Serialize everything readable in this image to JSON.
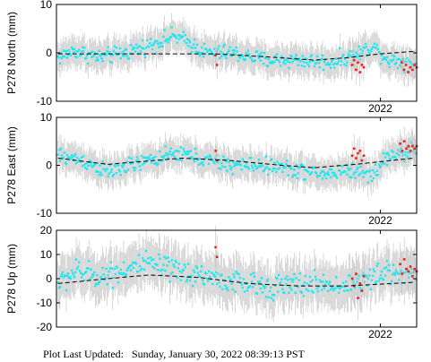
{
  "footer": {
    "label": "Plot Last Updated:",
    "timestamp": "Sunday, January 30, 2022 08:39:13 PST"
  },
  "colors": {
    "data_points": "#22e5ee",
    "recent_points": "#e8221c",
    "error_bars": "#c8c8c8",
    "trend_line": "#000000"
  },
  "chart_data": [
    {
      "type": "scatter",
      "ylabel": "P278 North (mm)",
      "ylim": [
        -10,
        10
      ],
      "yticks": [
        -10,
        0,
        10
      ],
      "xlim": [
        2020.04,
        2022.22
      ],
      "xticks": [
        2022
      ],
      "xtick_labels": [
        "2022"
      ],
      "error_bar_mm": 3,
      "trend": [
        {
          "t": 2020.05,
          "y": -0.2
        },
        {
          "t": 2020.6,
          "y": -0.2
        },
        {
          "t": 2021.0,
          "y": -0.2
        },
        {
          "t": 2021.3,
          "y": -0.8
        },
        {
          "t": 2021.6,
          "y": -1.5
        },
        {
          "t": 2021.8,
          "y": -1.0
        },
        {
          "t": 2022.0,
          "y": -0.2
        },
        {
          "t": 2022.2,
          "y": 0.3
        }
      ],
      "anchors": [
        {
          "t": 2020.05,
          "y": -1.0
        },
        {
          "t": 2020.15,
          "y": 0.5
        },
        {
          "t": 2020.3,
          "y": -1.0
        },
        {
          "t": 2020.45,
          "y": 0.0
        },
        {
          "t": 2020.55,
          "y": 1.0
        },
        {
          "t": 2020.68,
          "y": 2.5
        },
        {
          "t": 2020.75,
          "y": 3.5
        },
        {
          "t": 2020.85,
          "y": 2.0
        },
        {
          "t": 2020.95,
          "y": 0.0
        },
        {
          "t": 2021.1,
          "y": 0.0
        },
        {
          "t": 2021.3,
          "y": -1.5
        },
        {
          "t": 2021.5,
          "y": -1.5
        },
        {
          "t": 2021.7,
          "y": -2.0
        },
        {
          "t": 2021.85,
          "y": -0.5
        },
        {
          "t": 2021.95,
          "y": 1.5
        },
        {
          "t": 2022.05,
          "y": -1.5
        },
        {
          "t": 2022.2,
          "y": -2.0
        }
      ],
      "recent_ranges": [
        {
          "from": 2021.003,
          "to": 2021.012,
          "values": [
            -0.5,
            -2.5
          ]
        },
        {
          "from": 2021.83,
          "to": 2021.9,
          "values": [
            -2.5,
            -1.5,
            -3.5,
            -2.0,
            -4.0,
            -2.5,
            -3.0
          ]
        },
        {
          "from": 2022.13,
          "to": 2022.22,
          "values": [
            -2.0,
            -3.5,
            -2.5,
            -4.0,
            -3.0,
            -3.5,
            -2.5,
            -3.0
          ]
        }
      ]
    },
    {
      "type": "scatter",
      "ylabel": "P278 East (mm)",
      "ylim": [
        -10,
        10
      ],
      "yticks": [
        -10,
        0,
        10
      ],
      "xlim": [
        2020.04,
        2022.22
      ],
      "xticks": [
        2022
      ],
      "xtick_labels": [
        "2022"
      ],
      "error_bar_mm": 3,
      "trend": [
        {
          "t": 2020.05,
          "y": 1.5
        },
        {
          "t": 2020.35,
          "y": 0.2
        },
        {
          "t": 2020.8,
          "y": 1.5
        },
        {
          "t": 2021.1,
          "y": 1.0
        },
        {
          "t": 2021.4,
          "y": 0.0
        },
        {
          "t": 2021.6,
          "y": -0.5
        },
        {
          "t": 2021.85,
          "y": 0.2
        },
        {
          "t": 2022.2,
          "y": 1.5
        }
      ],
      "anchors": [
        {
          "t": 2020.05,
          "y": 2.0
        },
        {
          "t": 2020.2,
          "y": 1.0
        },
        {
          "t": 2020.35,
          "y": -1.5
        },
        {
          "t": 2020.5,
          "y": 0.0
        },
        {
          "t": 2020.65,
          "y": 1.5
        },
        {
          "t": 2020.8,
          "y": 2.5
        },
        {
          "t": 2020.95,
          "y": 1.0
        },
        {
          "t": 2021.1,
          "y": 0.0
        },
        {
          "t": 2021.3,
          "y": 0.0
        },
        {
          "t": 2021.5,
          "y": -1.0
        },
        {
          "t": 2021.65,
          "y": -2.0
        },
        {
          "t": 2021.8,
          "y": -1.0
        },
        {
          "t": 2021.95,
          "y": -2.0
        },
        {
          "t": 2022.05,
          "y": 2.0
        },
        {
          "t": 2022.2,
          "y": 3.0
        }
      ],
      "recent_ranges": [
        {
          "from": 2021.005,
          "to": 2021.012,
          "values": [
            3.0,
            1.0
          ]
        },
        {
          "from": 2021.83,
          "to": 2021.9,
          "values": [
            2.0,
            3.5,
            1.5,
            2.5,
            3.0,
            1.0,
            2.0
          ]
        },
        {
          "from": 2022.12,
          "to": 2022.22,
          "values": [
            4.5,
            3.0,
            5.0,
            3.5,
            4.0,
            3.0,
            4.0,
            3.5,
            4.0
          ]
        }
      ]
    },
    {
      "type": "scatter",
      "ylabel": "P278 Up (mm)",
      "ylim": [
        -20,
        20
      ],
      "yticks": [
        -20,
        -10,
        0,
        10,
        20
      ],
      "xlim": [
        2020.04,
        2022.22
      ],
      "xticks": [
        2022
      ],
      "xtick_labels": [
        "2022"
      ],
      "error_bar_mm": 9,
      "trend": [
        {
          "t": 2020.05,
          "y": -2.0
        },
        {
          "t": 2020.35,
          "y": 0.0
        },
        {
          "t": 2020.6,
          "y": 1.5
        },
        {
          "t": 2020.9,
          "y": 0.5
        },
        {
          "t": 2021.2,
          "y": -2.0
        },
        {
          "t": 2021.5,
          "y": -3.0
        },
        {
          "t": 2021.8,
          "y": -3.0
        },
        {
          "t": 2022.2,
          "y": -1.5
        }
      ],
      "anchors": [
        {
          "t": 2020.05,
          "y": -2.0
        },
        {
          "t": 2020.15,
          "y": 3.0
        },
        {
          "t": 2020.3,
          "y": 1.0
        },
        {
          "t": 2020.45,
          "y": 4.0
        },
        {
          "t": 2020.6,
          "y": 6.0
        },
        {
          "t": 2020.75,
          "y": 3.0
        },
        {
          "t": 2020.9,
          "y": 2.0
        },
        {
          "t": 2021.05,
          "y": -1.0
        },
        {
          "t": 2021.25,
          "y": -3.0
        },
        {
          "t": 2021.45,
          "y": -3.0
        },
        {
          "t": 2021.6,
          "y": -2.0
        },
        {
          "t": 2021.75,
          "y": -3.0
        },
        {
          "t": 2021.95,
          "y": 0.0
        },
        {
          "t": 2022.05,
          "y": 3.0
        },
        {
          "t": 2022.2,
          "y": 2.0
        }
      ],
      "recent_ranges": [
        {
          "from": 2021.003,
          "to": 2021.012,
          "values": [
            13.0,
            9.0
          ]
        },
        {
          "from": 2021.83,
          "to": 2021.9,
          "values": [
            0.0,
            -3.0,
            2.0,
            -8.0,
            -2.0,
            -5.0,
            1.0
          ]
        },
        {
          "from": 2022.12,
          "to": 2022.22,
          "values": [
            6.0,
            2.0,
            8.0,
            4.0,
            3.0,
            5.0,
            1.0,
            4.0,
            3.0
          ]
        }
      ]
    }
  ]
}
